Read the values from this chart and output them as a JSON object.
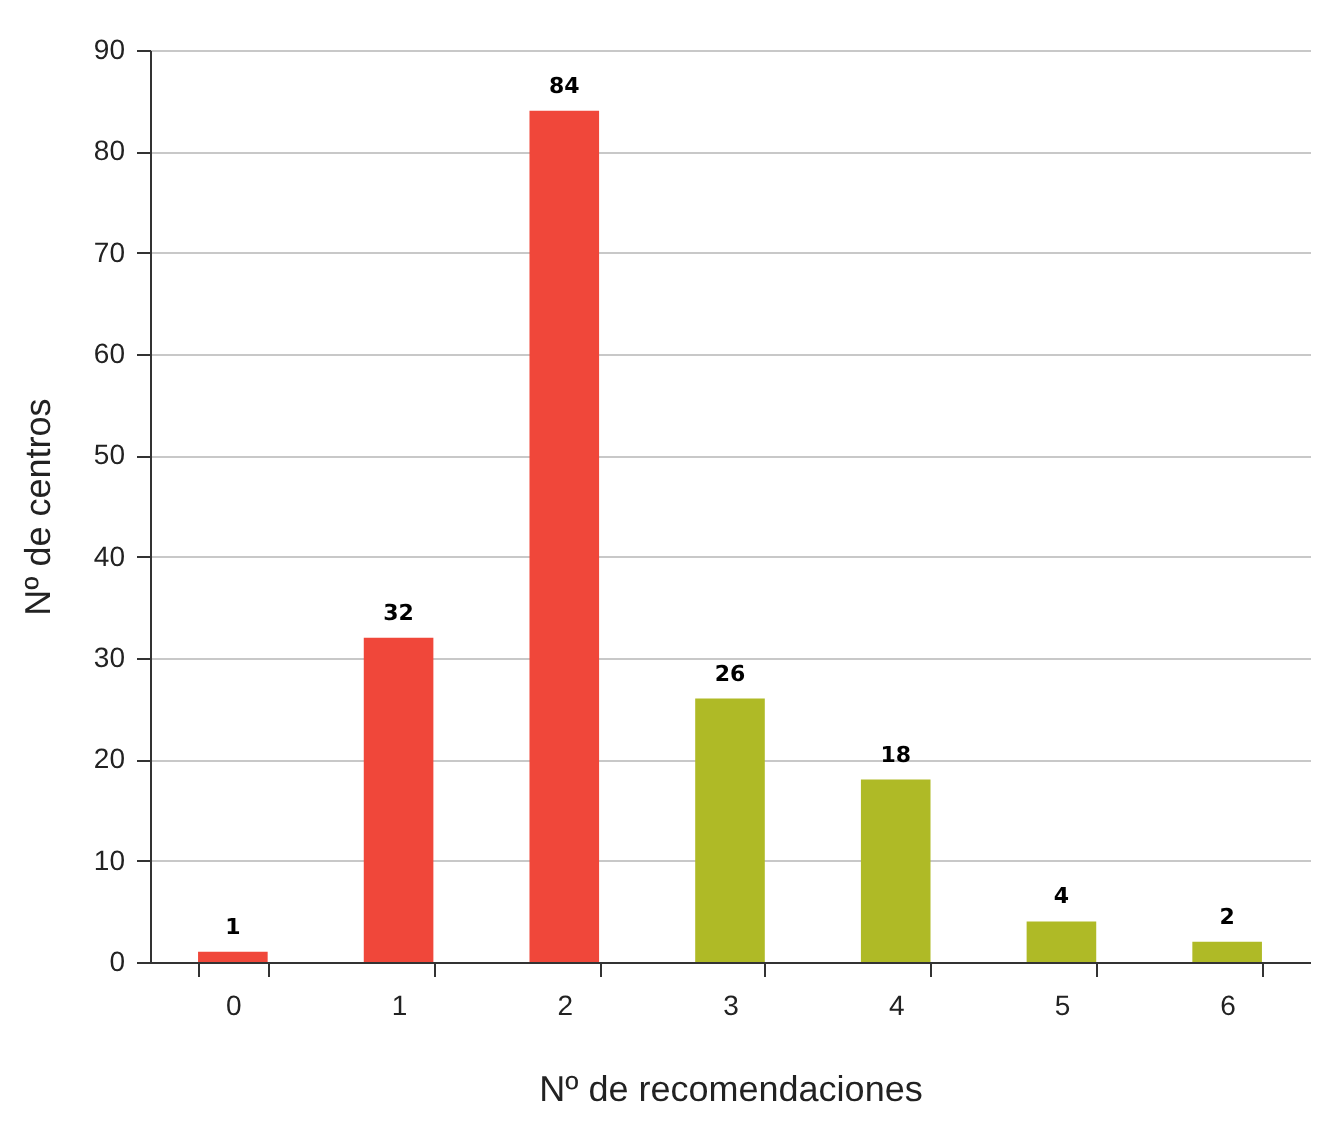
{
  "chart_data": {
    "type": "bar",
    "xlabel": "Nº de recomendaciones",
    "ylabel": "Nº de centros",
    "categories": [
      "0",
      "1",
      "2",
      "3",
      "4",
      "5",
      "6"
    ],
    "values": [
      1,
      32,
      84,
      26,
      18,
      4,
      2
    ],
    "colors": [
      "#f0473a",
      "#f0473a",
      "#f0473a",
      "#afba26",
      "#afba26",
      "#afba26",
      "#afba26"
    ],
    "ylim": [
      0,
      90
    ],
    "yticks": [
      0,
      10,
      20,
      30,
      40,
      50,
      60,
      70,
      80,
      90
    ],
    "grid": "y",
    "data_labels": true
  }
}
